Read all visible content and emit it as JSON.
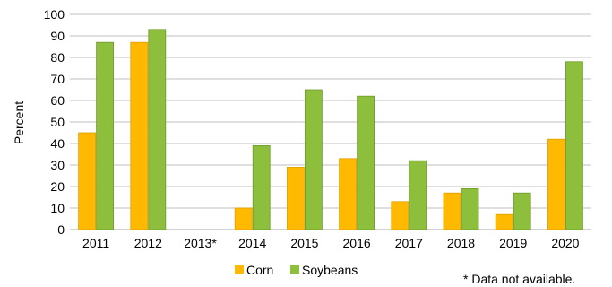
{
  "chart_data": {
    "type": "bar",
    "categories": [
      "2011",
      "2012",
      "2013*",
      "2014",
      "2015",
      "2016",
      "2017",
      "2018",
      "2019",
      "2020"
    ],
    "series": [
      {
        "name": "Corn",
        "values": [
          45,
          87,
          null,
          10,
          29,
          33,
          13,
          17,
          7,
          42
        ],
        "color": "#FFB900"
      },
      {
        "name": "Soybeans",
        "values": [
          87,
          93,
          null,
          39,
          65,
          62,
          32,
          19,
          17,
          78
        ],
        "color": "#8DBE3C"
      }
    ],
    "title": "",
    "xlabel": "",
    "ylabel": "Percent",
    "ylim": [
      0,
      100
    ],
    "yticks": [
      0,
      10,
      20,
      30,
      40,
      50,
      60,
      70,
      80,
      90,
      100
    ],
    "grid": true,
    "legend": "bottom",
    "annotation": "* Data not available.",
    "colors": {
      "gridline": "#BFBFBF",
      "corn_border": "#E0A000",
      "soy_border": "#6E9A2C"
    }
  }
}
